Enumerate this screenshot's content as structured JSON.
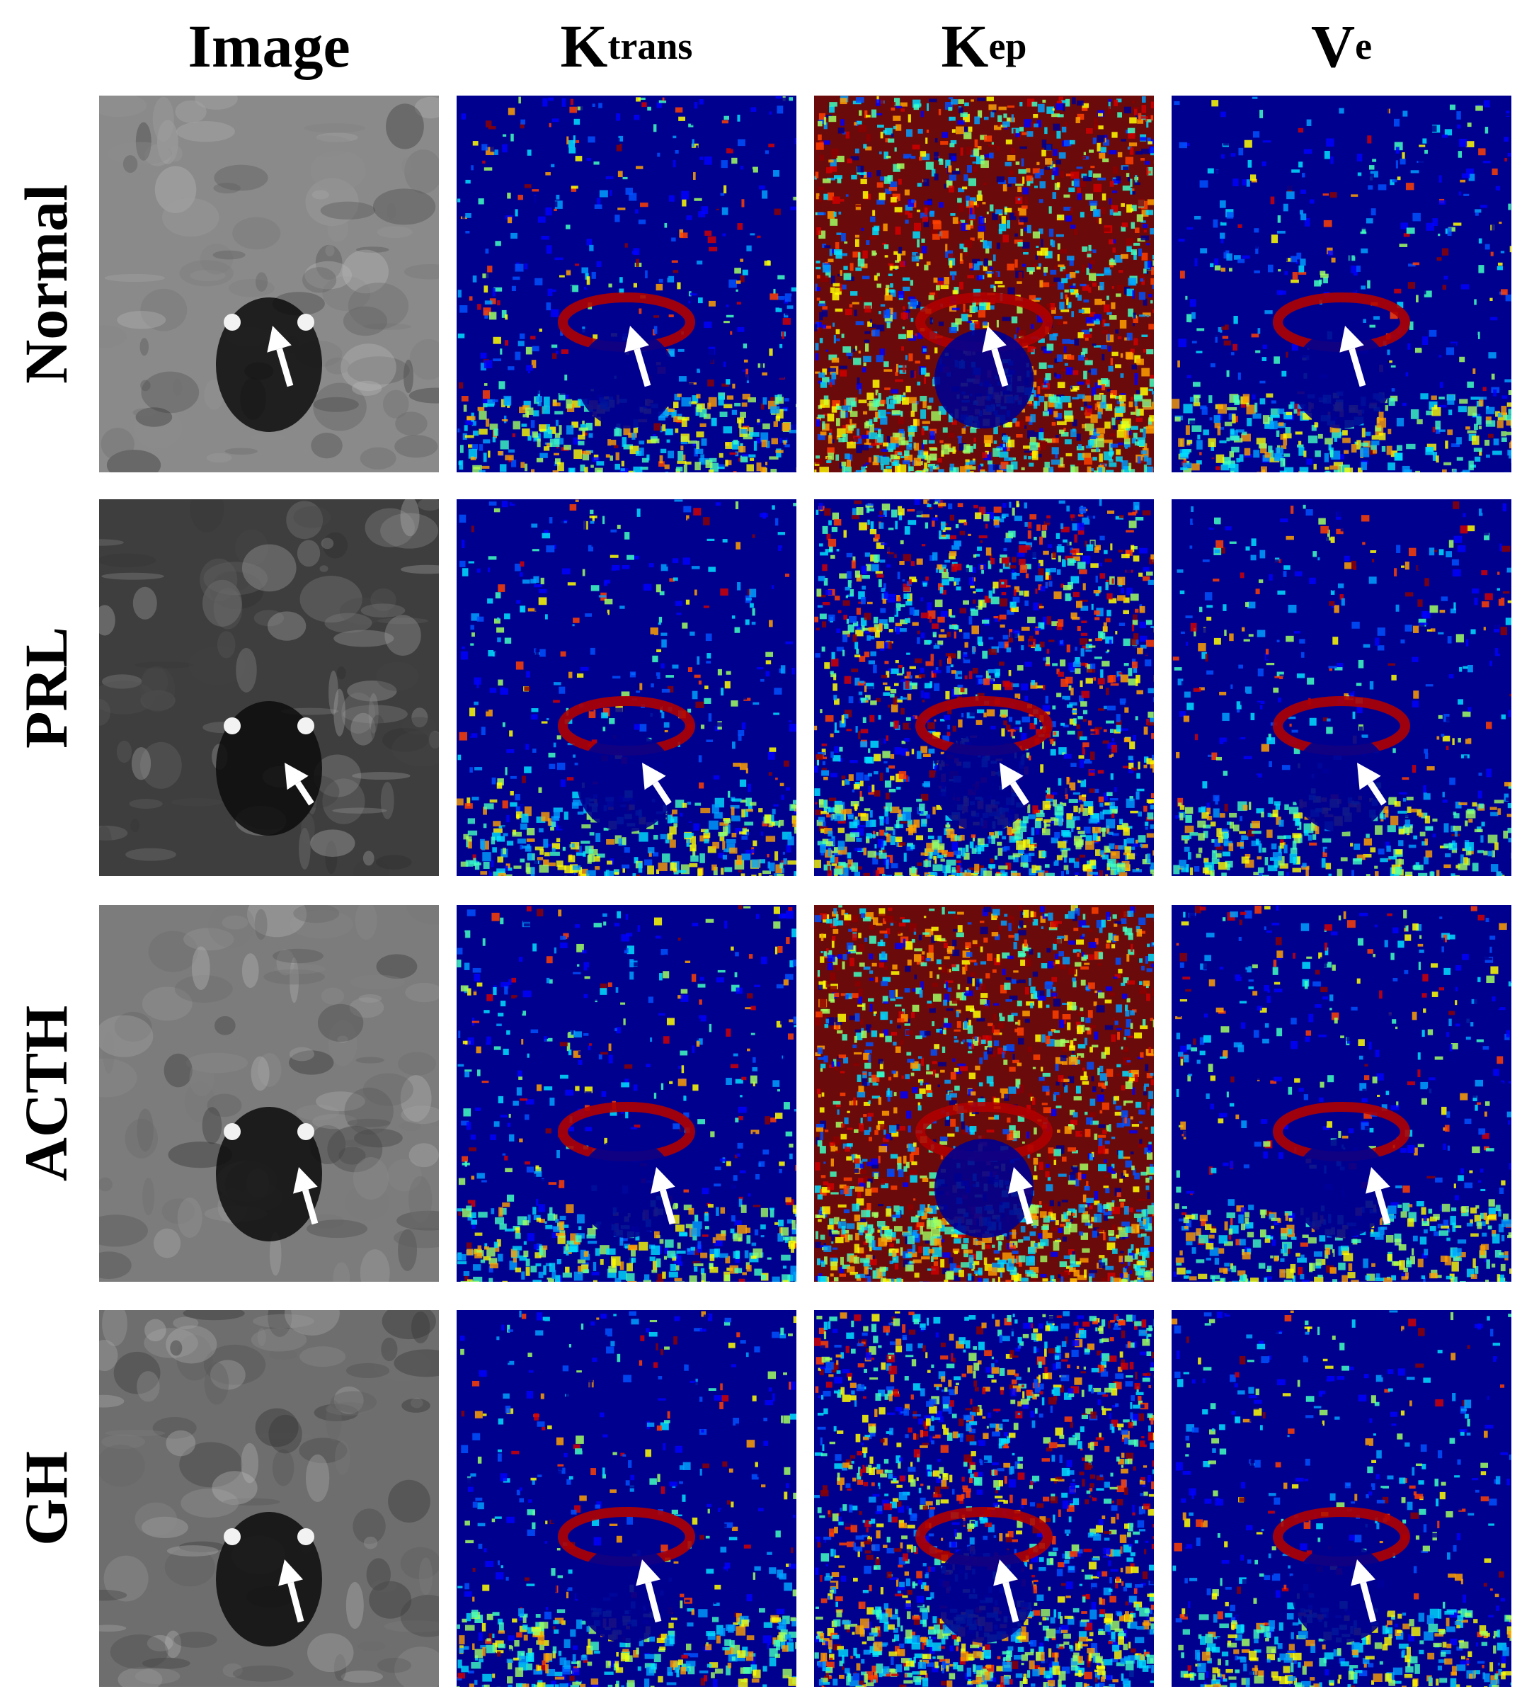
{
  "columns": [
    {
      "main": "Image",
      "sup": "",
      "sub": ""
    },
    {
      "main": "K",
      "sup": "trans",
      "sub": ""
    },
    {
      "main": "K",
      "sup": "",
      "sub": "ep"
    },
    {
      "main": "V",
      "sup": "",
      "sub": "e"
    }
  ],
  "rows": [
    "Normal",
    "PRL",
    "ACTH",
    "GH"
  ],
  "panel_styles": {
    "grayscale": "MRI coronal image",
    "parametric": "jet colormap"
  },
  "colors": {
    "arrow": "#ffffff",
    "jet_low": "#00008f",
    "jet_high": "#8b0000"
  }
}
